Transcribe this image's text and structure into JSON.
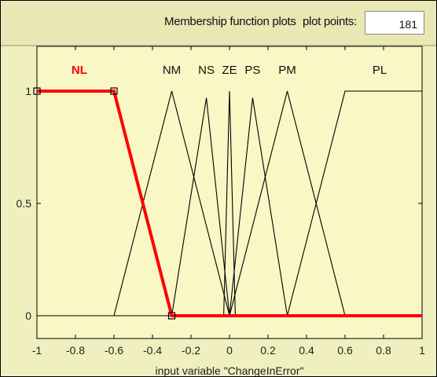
{
  "header": {
    "title": "Membership function plots",
    "plot_points_label": "plot points:",
    "plot_points_value": "181"
  },
  "colors": {
    "background": "#f0efc0",
    "highlight": "#ff0000",
    "curve": "#000000"
  },
  "chart_data": {
    "type": "line",
    "xlabel": "input variable \"ChangeInError\"",
    "xlim": [
      -1,
      1
    ],
    "ylim": [
      0,
      1
    ],
    "xticks": [
      "-1",
      "-0.8",
      "-0.6",
      "-0.4",
      "-0.2",
      "0",
      "0.2",
      "0.4",
      "0.6",
      "0.8",
      "1"
    ],
    "yticks": [
      "0",
      "0.5",
      "1"
    ],
    "grid": false,
    "series": [
      {
        "name": "NL",
        "selected": true,
        "label_x": -0.78,
        "x": [
          -1,
          -0.6,
          -0.3,
          1
        ],
        "y": [
          1,
          1,
          0,
          0
        ]
      },
      {
        "name": "NM",
        "selected": false,
        "label_x": -0.3,
        "x": [
          -1,
          -0.6,
          -0.3,
          0,
          1
        ],
        "y": [
          0,
          0,
          1,
          0,
          0
        ]
      },
      {
        "name": "NS",
        "selected": false,
        "label_x": -0.12,
        "x": [
          -1,
          -0.3,
          -0.12,
          0,
          1
        ],
        "y": [
          0,
          0,
          0.97,
          0,
          0
        ]
      },
      {
        "name": "ZE",
        "selected": false,
        "label_x": 0,
        "x": [
          -1,
          -0.03,
          0,
          0.03,
          1
        ],
        "y": [
          0,
          0,
          1,
          0,
          0
        ]
      },
      {
        "name": "PS",
        "selected": false,
        "label_x": 0.12,
        "x": [
          -1,
          0,
          0.12,
          0.3,
          1
        ],
        "y": [
          0,
          0,
          0.97,
          0,
          0
        ]
      },
      {
        "name": "PM",
        "selected": false,
        "label_x": 0.3,
        "x": [
          -1,
          0,
          0.3,
          0.6,
          1
        ],
        "y": [
          0,
          0,
          1,
          0,
          0
        ]
      },
      {
        "name": "PL",
        "selected": false,
        "label_x": 0.78,
        "x": [
          -1,
          0.3,
          0.6,
          1
        ],
        "y": [
          0,
          0,
          1,
          1
        ]
      }
    ]
  }
}
